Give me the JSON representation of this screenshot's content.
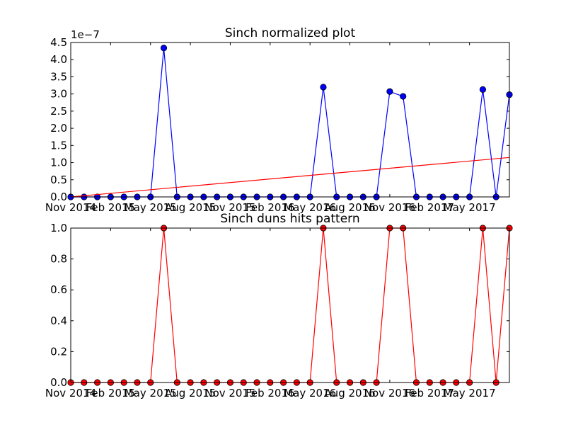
{
  "chart_data": [
    {
      "type": "line",
      "title": "Sinch normalized plot",
      "xlabel": "",
      "ylabel": "",
      "y_offset_label": "1e−7",
      "y_tick_labels": [
        "0.0",
        "0.5",
        "1.0",
        "1.5",
        "2.0",
        "2.5",
        "3.0",
        "3.5",
        "4.0",
        "4.5"
      ],
      "ylim": [
        0,
        4.5e-07
      ],
      "x_tick_labels": [
        "Nov 2014",
        "Feb 2015",
        "May 2015",
        "Aug 2015",
        "Nov 2015",
        "Feb 2016",
        "May 2016",
        "Aug 2016",
        "Nov 2016",
        "Feb 2017",
        "May 2017"
      ],
      "x_index_range": [
        0,
        33
      ],
      "grid": false,
      "series": [
        {
          "color": "#0000ff",
          "marker": "circle",
          "values": [
            0,
            0,
            0,
            0,
            0,
            0,
            0,
            4.34e-07,
            0,
            0,
            0,
            0,
            0,
            0,
            0,
            0,
            0,
            0,
            0,
            3.2e-07,
            0,
            0,
            0,
            0,
            3.07e-07,
            2.93e-07,
            0,
            0,
            0,
            0,
            0,
            3.13e-07,
            0,
            2.98e-07
          ]
        },
        {
          "color": "#ff0000",
          "marker": "none",
          "values_start_end": [
            0,
            1.15e-07
          ]
        }
      ]
    },
    {
      "type": "line",
      "title": "Sinch duns hits pattern",
      "xlabel": "",
      "ylabel": "",
      "y_tick_labels": [
        "0.0",
        "0.2",
        "0.4",
        "0.6",
        "0.8",
        "1.0"
      ],
      "ylim": [
        0,
        1.0
      ],
      "x_tick_labels": [
        "Nov 2014",
        "Feb 2015",
        "May 2015",
        "Aug 2015",
        "Nov 2015",
        "Feb 2016",
        "May 2016",
        "Aug 2016",
        "Nov 2016",
        "Feb 2017",
        "May 2017"
      ],
      "x_index_range": [
        0,
        33
      ],
      "grid": false,
      "series": [
        {
          "color": "#ff0000",
          "marker": "circle",
          "values": [
            0,
            0,
            0,
            0,
            0,
            0,
            0,
            1,
            0,
            0,
            0,
            0,
            0,
            0,
            0,
            0,
            0,
            0,
            0,
            1,
            0,
            0,
            0,
            0,
            1,
            1,
            0,
            0,
            0,
            0,
            0,
            1,
            0,
            1
          ]
        }
      ]
    }
  ]
}
